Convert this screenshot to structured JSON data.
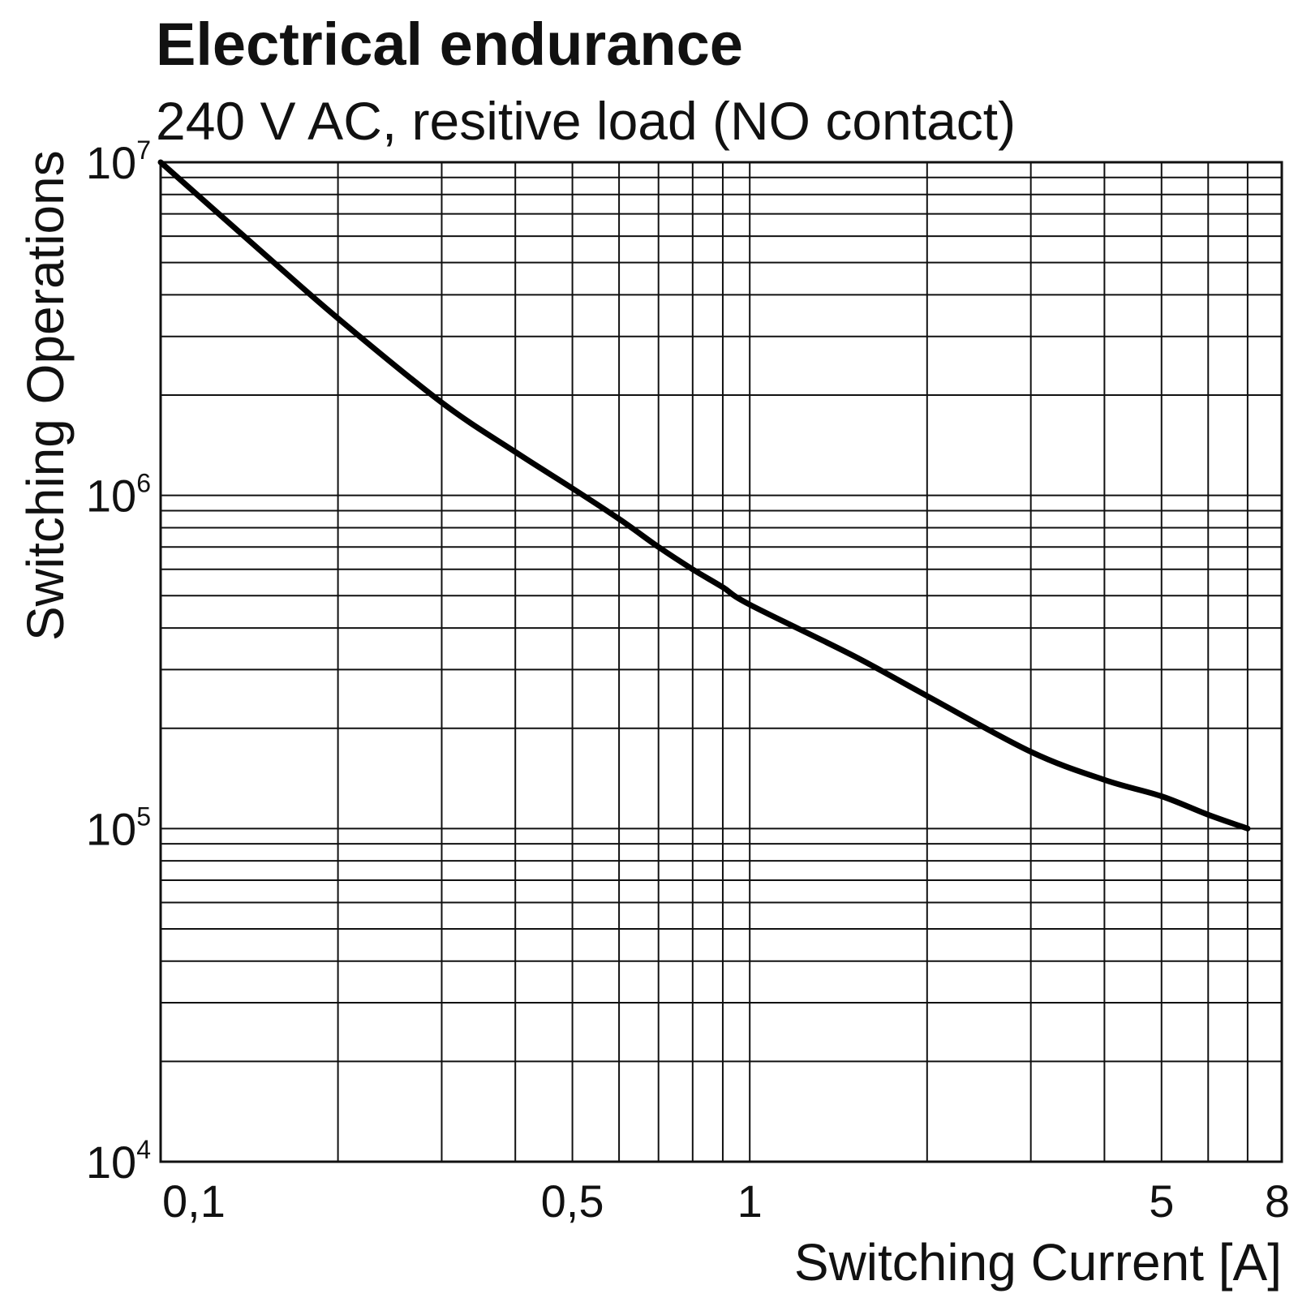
{
  "colors": {
    "ink": "#111111",
    "background": "#ffffff",
    "curve": "#000000"
  },
  "chart_data": {
    "type": "line",
    "title": "Electrical endurance",
    "subtitle": "240 V AC, resitive load (NO contact)",
    "xlabel": "Switching Current [A]",
    "ylabel": "Switching Operations",
    "x_scale": "log",
    "y_scale": "log",
    "xlim": [
      0.1,
      8
    ],
    "ylim": [
      10000,
      10000000
    ],
    "grid": true,
    "x_ticks": [
      {
        "value": 0.1,
        "label": "0,1"
      },
      {
        "value": 0.5,
        "label": "0,5"
      },
      {
        "value": 1,
        "label": "1"
      },
      {
        "value": 5,
        "label": "5"
      },
      {
        "value": 8,
        "label": "8"
      }
    ],
    "y_ticks": [
      {
        "value": 10000,
        "base": "10",
        "exp": "4"
      },
      {
        "value": 100000,
        "base": "10",
        "exp": "5"
      },
      {
        "value": 1000000,
        "base": "10",
        "exp": "6"
      },
      {
        "value": 10000000,
        "base": "10",
        "exp": "7"
      }
    ],
    "x_grid_values": [
      0.1,
      0.2,
      0.3,
      0.4,
      0.5,
      0.6,
      0.7,
      0.8,
      0.9,
      1,
      2,
      3,
      4,
      5,
      6,
      7,
      8
    ],
    "y_grid_values": [
      10000,
      20000,
      30000,
      40000,
      50000,
      60000,
      70000,
      80000,
      90000,
      100000,
      200000,
      300000,
      400000,
      500000,
      600000,
      700000,
      800000,
      900000,
      1000000,
      2000000,
      3000000,
      4000000,
      5000000,
      6000000,
      7000000,
      8000000,
      9000000,
      10000000
    ],
    "series": [
      {
        "x": [
          0.1,
          0.15,
          0.2,
          0.3,
          0.4,
          0.5,
          0.6,
          0.7,
          0.8,
          0.9,
          1,
          1.5,
          2,
          3,
          4,
          5,
          6,
          7
        ],
        "y": [
          10000000,
          5300000,
          3400000,
          1900000,
          1350000,
          1050000,
          850000,
          700000,
          600000,
          530000,
          470000,
          330000,
          250000,
          170000,
          140000,
          125000,
          110000,
          100000
        ]
      }
    ]
  }
}
